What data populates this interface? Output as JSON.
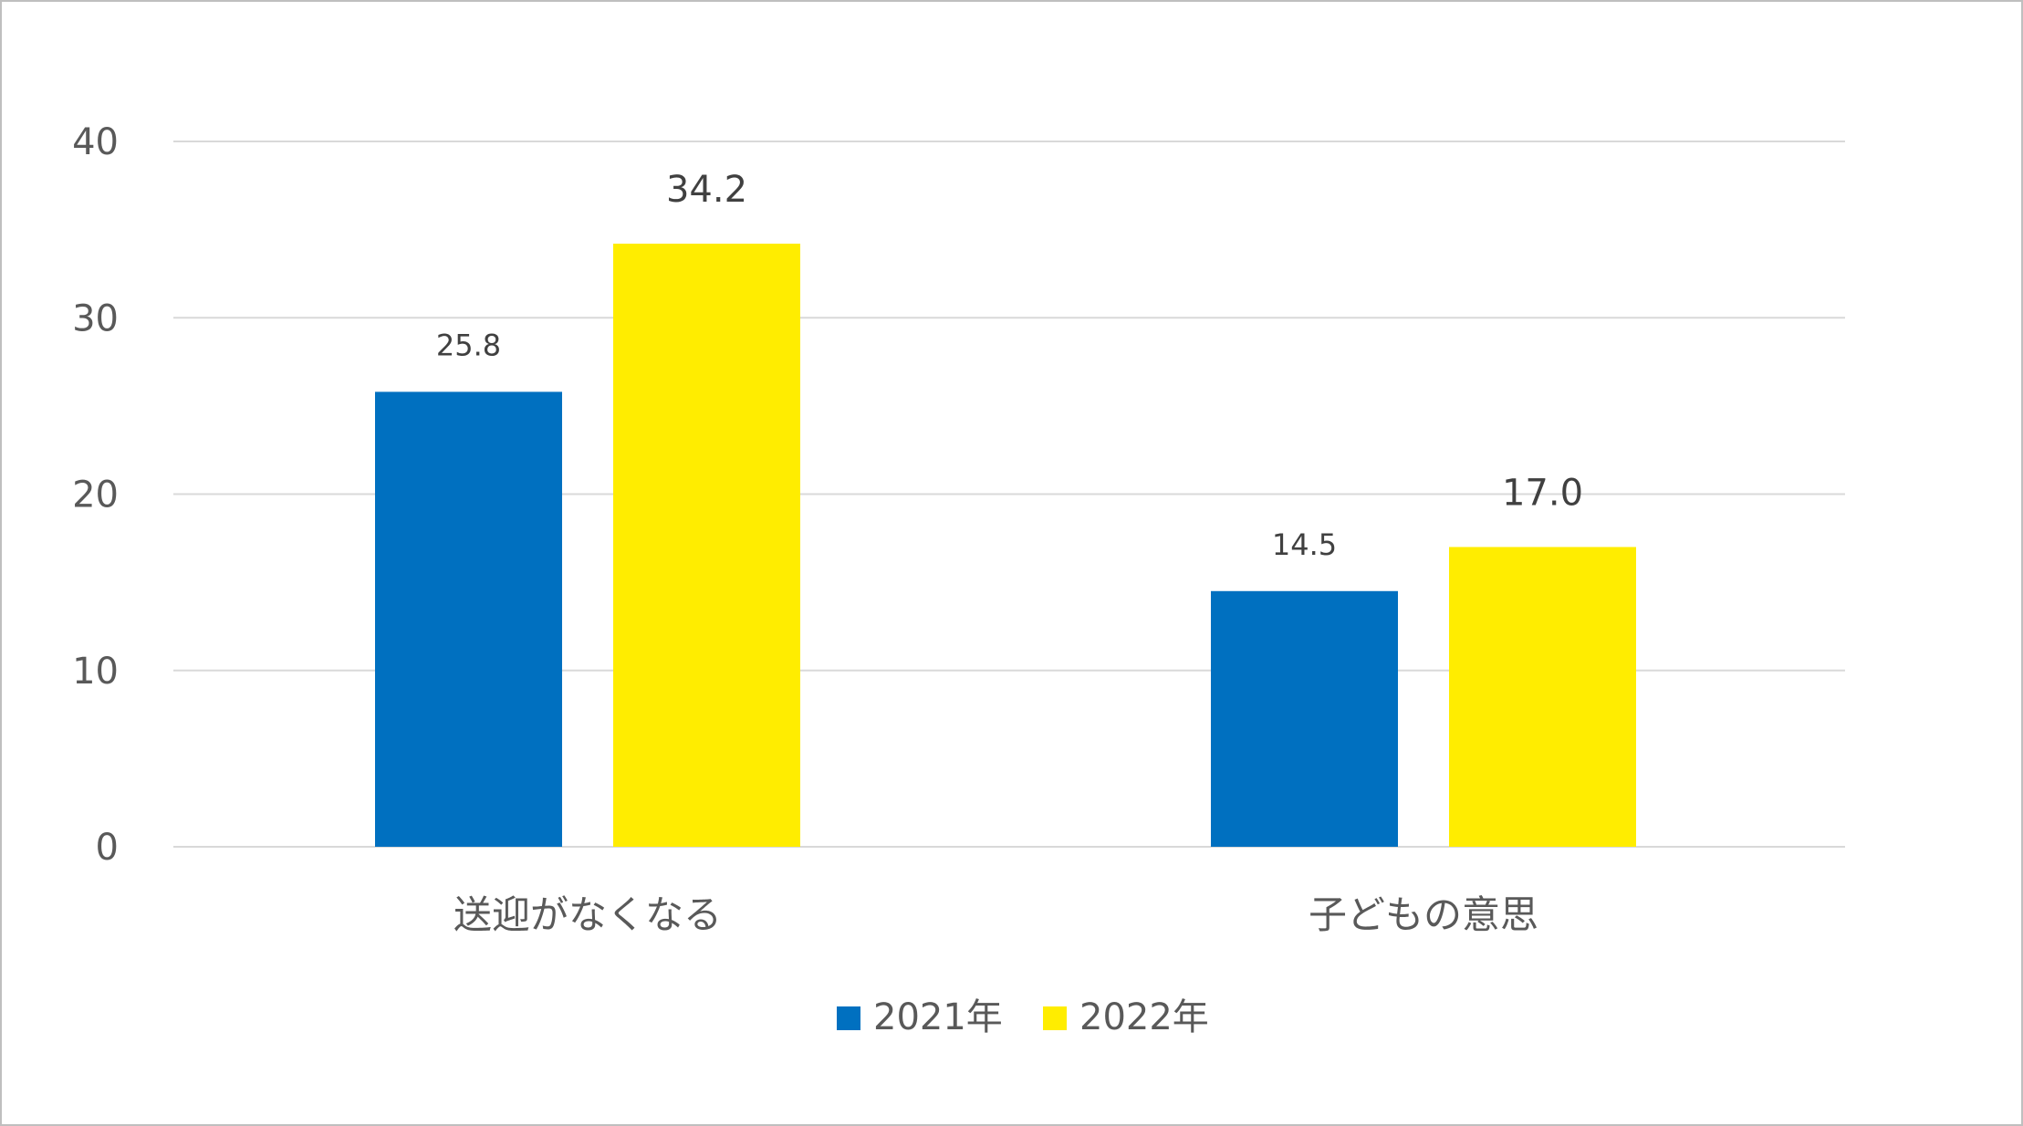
{
  "chart_data": {
    "type": "bar",
    "categories": [
      "送迎がなくなる",
      "子どもの意思"
    ],
    "series": [
      {
        "name": "2021年",
        "values": [
          25.8,
          14.5
        ],
        "color": "#0070C0"
      },
      {
        "name": "2022年",
        "values": [
          34.2,
          17.0
        ],
        "color": "#FFED00"
      }
    ],
    "data_labels": [
      [
        "25.8",
        "14.5"
      ],
      [
        "34.2",
        "17.0"
      ]
    ],
    "ylim": [
      0,
      40
    ],
    "yticks": [
      "0",
      "10",
      "20",
      "30",
      "40"
    ],
    "grid": true,
    "legend_position": "bottom",
    "title": "",
    "xlabel": "",
    "ylabel": ""
  }
}
